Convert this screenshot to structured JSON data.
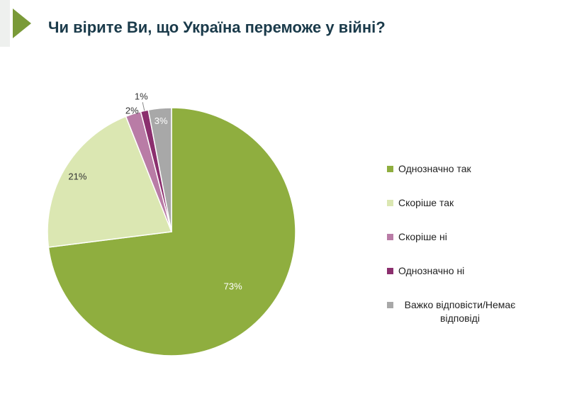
{
  "title": "Чи вірите Ви, що Україна переможе у війні?",
  "colors": {
    "accent_green": "#7a9a38",
    "title_text": "#1a3a4a"
  },
  "chart_data": {
    "type": "pie",
    "title": "Чи вірите Ви, що Україна переможе у війні?",
    "legend_position": "right",
    "slices": [
      {
        "label": "Однозначно так",
        "value": 73,
        "display": "73%",
        "color": "#8fae3f"
      },
      {
        "label": "Скоріше так",
        "value": 21,
        "display": "21%",
        "color": "#dbe7b2"
      },
      {
        "label": "Скоріше ні",
        "value": 2,
        "display": "2%",
        "color": "#b97ca6"
      },
      {
        "label": "Однозначно ні",
        "value": 1,
        "display": "1%",
        "color": "#8b2f6e"
      },
      {
        "label": "Важко відповісти/Немає відповіді",
        "value": 3,
        "display": "3%",
        "color": "#a8a8a8"
      }
    ]
  }
}
